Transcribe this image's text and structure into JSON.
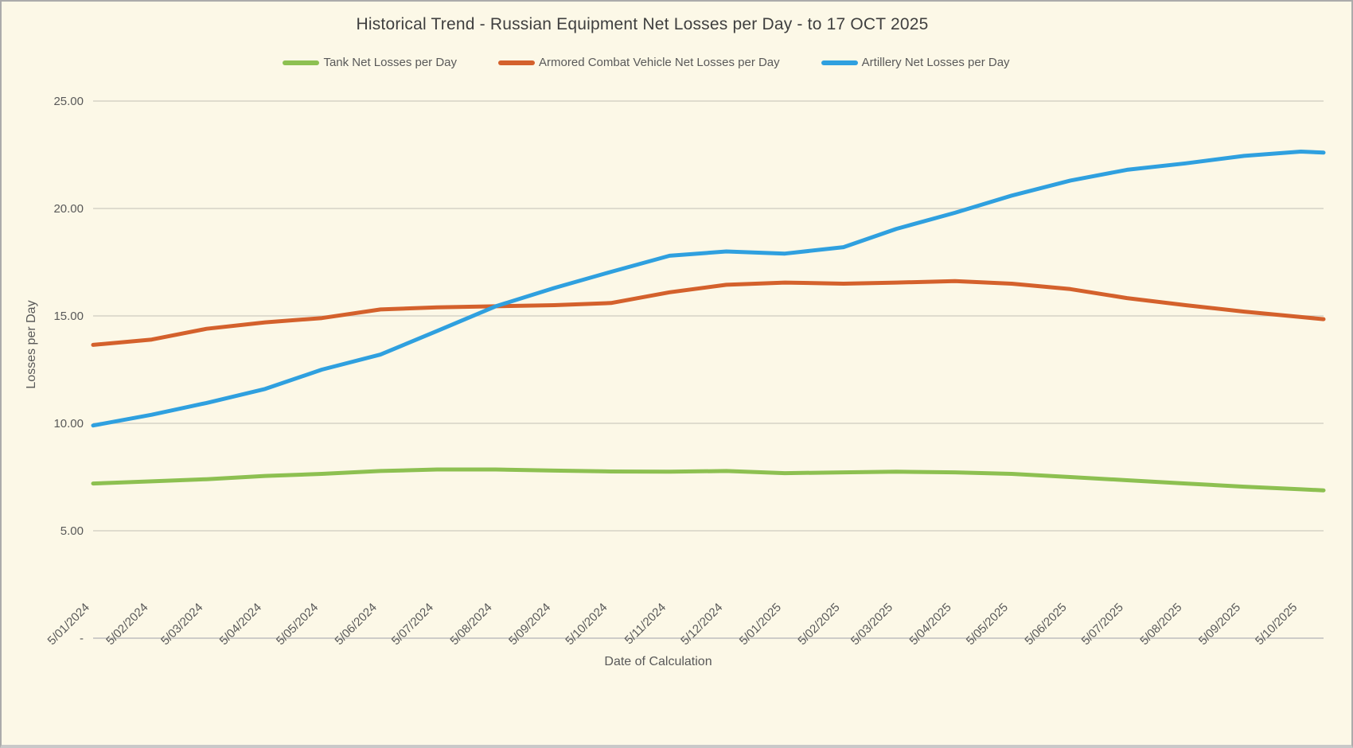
{
  "window": {
    "background_color": "#FCF8E7",
    "border_color": "#ABABAB"
  },
  "chart": {
    "title": "Historical Trend - Russian Equipment Net Losses per Day - to 17 OCT 2025",
    "x_axis_title": "Date of Calculation",
    "y_axis_title": "Losses per Day",
    "title_color": "#3F3F3F",
    "text_color": "#595959",
    "gridline_color": "#D5D2C6",
    "zero_line_color": "#BDBDBD"
  },
  "chart_data": {
    "type": "line",
    "title": "Historical Trend - Russian Equipment Net Losses per Day - to 17 OCT 2025",
    "xlabel": "Date of Calculation",
    "ylabel": "Losses per Day",
    "ylim": [
      0,
      25
    ],
    "grid": "horizontal",
    "legend_position": "top",
    "y_ticks": [
      {
        "label": "25.00",
        "value": 25
      },
      {
        "label": "20.00",
        "value": 20
      },
      {
        "label": "15.00",
        "value": 15
      },
      {
        "label": "10.00",
        "value": 10
      },
      {
        "label": "5.00",
        "value": 5
      },
      {
        "label": "-",
        "value": 0
      }
    ],
    "x_tick_labels": [
      "5/01/2024",
      "5/02/2024",
      "5/03/2024",
      "5/04/2024",
      "5/05/2024",
      "5/06/2024",
      "5/07/2024",
      "5/08/2024",
      "5/09/2024",
      "5/10/2024",
      "5/11/2024",
      "5/12/2024",
      "5/01/2025",
      "5/02/2025",
      "5/03/2025",
      "5/04/2025",
      "5/05/2025",
      "5/06/2025",
      "5/07/2025",
      "5/08/2025",
      "5/09/2025",
      "5/10/2025"
    ],
    "x_tick_days": [
      0,
      31,
      60,
      91,
      121,
      152,
      182,
      213,
      244,
      274,
      305,
      335,
      366,
      397,
      425,
      456,
      486,
      517,
      547,
      578,
      609,
      639
    ],
    "x_range_days": [
      0,
      651
    ],
    "point_labels": [
      "5/01/2024",
      "5/02/2024",
      "5/03/2024",
      "5/04/2024",
      "5/05/2024",
      "5/06/2024",
      "5/07/2024",
      "5/08/2024",
      "5/09/2024",
      "5/10/2024",
      "5/11/2024",
      "5/12/2024",
      "5/01/2025",
      "5/02/2025",
      "5/03/2025",
      "5/04/2025",
      "5/05/2025",
      "5/06/2025",
      "5/07/2025",
      "5/08/2025",
      "5/09/2025",
      "5/10/2025",
      "17/10/2025"
    ],
    "point_days": [
      0,
      31,
      60,
      91,
      121,
      152,
      182,
      213,
      244,
      274,
      305,
      335,
      366,
      397,
      425,
      456,
      486,
      517,
      547,
      578,
      609,
      639,
      651
    ],
    "series": [
      {
        "name": "Tank Net Losses per Day",
        "color": "#8DC051",
        "values": [
          7.2,
          7.3,
          7.4,
          7.55,
          7.65,
          7.78,
          7.85,
          7.85,
          7.8,
          7.76,
          7.75,
          7.78,
          7.68,
          7.72,
          7.75,
          7.72,
          7.65,
          7.5,
          7.35,
          7.2,
          7.05,
          6.93,
          6.88
        ]
      },
      {
        "name": "Armored Combat Vehicle Net Losses per Day",
        "color": "#D4612C",
        "values": [
          13.65,
          13.9,
          14.4,
          14.7,
          14.9,
          15.3,
          15.4,
          15.45,
          15.5,
          15.6,
          16.1,
          16.45,
          16.55,
          16.5,
          16.55,
          16.62,
          16.5,
          16.25,
          15.83,
          15.5,
          15.2,
          14.95,
          14.85
        ]
      },
      {
        "name": "Artillery Net Losses per Day",
        "color": "#2FA0DF",
        "values": [
          9.9,
          10.4,
          10.95,
          11.6,
          12.5,
          13.2,
          14.3,
          15.45,
          16.3,
          17.05,
          17.8,
          18.0,
          17.9,
          18.2,
          19.05,
          19.8,
          20.6,
          21.3,
          21.8,
          22.1,
          22.45,
          22.65,
          22.6
        ]
      }
    ]
  }
}
